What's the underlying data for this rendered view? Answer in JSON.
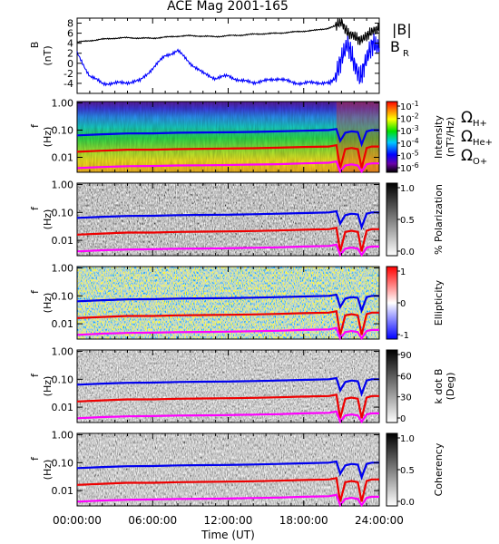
{
  "title": "ACE Mag 2001-165",
  "colors": {
    "B": "#000000",
    "BR": "#0000ff",
    "OmegaH": "#0000ee",
    "OmegaHe": "#ee0000",
    "OmegaO": "#ff00ff"
  },
  "legend": {
    "B_label": "|B|",
    "BR_label": "B",
    "BR_sub": "R",
    "OH_label": "Ω",
    "OH_sub": "H+",
    "OHe_label": "Ω",
    "OHe_sub": "He+",
    "OO_label": "Ω",
    "OO_sub": "O+"
  },
  "xaxis": {
    "label": "Time (UT)",
    "ticks": [
      "00:00:00",
      "06:00:00",
      "12:00:00",
      "18:00:00",
      "24:00:00"
    ]
  },
  "chart_data": [
    {
      "type": "line",
      "ylabel": "B",
      "yunit": "(nT)",
      "ylim": [
        -6,
        9
      ],
      "yticks": [
        "8",
        "6",
        "4",
        "2",
        "0",
        "-2",
        "-4"
      ],
      "x_hours": [
        0,
        1,
        2,
        3,
        4,
        5,
        6,
        7,
        8,
        9,
        10,
        11,
        12,
        13,
        14,
        15,
        16,
        17,
        18,
        19,
        20,
        20.5,
        21,
        21.5,
        22,
        22.5,
        23,
        23.5,
        24
      ],
      "series": [
        {
          "name": "|B|",
          "values": [
            4.2,
            4.5,
            4.8,
            5.0,
            5.1,
            5.0,
            5.0,
            5.2,
            5.4,
            5.5,
            5.4,
            5.3,
            5.5,
            5.6,
            5.8,
            5.9,
            6.0,
            6.2,
            6.4,
            6.6,
            7.0,
            7.5,
            8.2,
            6.0,
            5.5,
            4.5,
            5.5,
            6.5,
            7.0
          ]
        },
        {
          "name": "B_R",
          "values": [
            2.0,
            -2.5,
            -4.0,
            -4.0,
            -3.8,
            -3.5,
            -1.0,
            1.5,
            2.5,
            0.0,
            -2.0,
            -3.0,
            -2.5,
            -3.5,
            -3.8,
            -3.5,
            -3.0,
            -3.8,
            -4.0,
            -3.8,
            -4.0,
            -3.0,
            1.0,
            4.0,
            0.0,
            -3.0,
            1.0,
            4.0,
            3.0
          ]
        }
      ]
    },
    {
      "type": "heatmap",
      "ylabel": "f",
      "yunit": "(Hz)",
      "yticks": [
        "1.00",
        "0.10",
        "0.01"
      ],
      "colorbar": {
        "label": "Intensity",
        "unit": "(nT²/Hz)",
        "ticks": [
          "10^-1",
          "10^-2",
          "10^-3",
          "10^-4",
          "10^-5",
          "10^-6"
        ]
      }
    },
    {
      "type": "heatmap",
      "ylabel": "f",
      "yunit": "(Hz)",
      "yticks": [
        "1.00",
        "0.10",
        "0.01"
      ],
      "colorbar": {
        "label": "% Polarization",
        "ticks": [
          "1.0",
          "0.5",
          "0.0"
        ]
      }
    },
    {
      "type": "heatmap",
      "ylabel": "f",
      "yunit": "(Hz)",
      "yticks": [
        "1.00",
        "0.10",
        "0.01"
      ],
      "colorbar": {
        "label": "Ellipticity",
        "ticks": [
          "1",
          "0",
          "-1"
        ]
      }
    },
    {
      "type": "heatmap",
      "ylabel": "f",
      "yunit": "(Hz)",
      "yticks": [
        "1.00",
        "0.10",
        "0.01"
      ],
      "colorbar": {
        "label": "k dot B",
        "unit": "(Deg)",
        "ticks": [
          "90",
          "60",
          "30",
          "0"
        ]
      }
    },
    {
      "type": "heatmap",
      "ylabel": "f",
      "yunit": "(Hz)",
      "yticks": [
        "1.00",
        "0.10",
        "0.01"
      ],
      "colorbar": {
        "label": "Coherency",
        "ticks": [
          "1.0",
          "0.5",
          "0.0"
        ]
      }
    }
  ],
  "gyrofrequency_curves": {
    "x_hours": [
      0,
      2,
      4,
      6,
      8,
      10,
      12,
      14,
      16,
      18,
      20,
      20.6,
      20.9,
      21.3,
      21.8,
      22.3,
      22.6,
      23.0,
      23.4,
      24
    ],
    "H+": [
      0.064,
      0.07,
      0.075,
      0.076,
      0.08,
      0.082,
      0.083,
      0.086,
      0.09,
      0.095,
      0.1,
      0.11,
      0.04,
      0.08,
      0.09,
      0.085,
      0.03,
      0.09,
      0.1,
      0.1
    ],
    "He+": [
      0.016,
      0.0175,
      0.019,
      0.019,
      0.02,
      0.0205,
      0.021,
      0.0215,
      0.0225,
      0.024,
      0.025,
      0.028,
      0.004,
      0.02,
      0.022,
      0.02,
      0.004,
      0.022,
      0.025,
      0.025
    ],
    "O+": [
      0.004,
      0.0044,
      0.0047,
      0.0048,
      0.005,
      0.0051,
      0.0052,
      0.0054,
      0.0056,
      0.006,
      0.0063,
      0.007,
      0.003,
      0.005,
      0.0055,
      0.005,
      0.003,
      0.0055,
      0.006,
      0.006
    ]
  }
}
